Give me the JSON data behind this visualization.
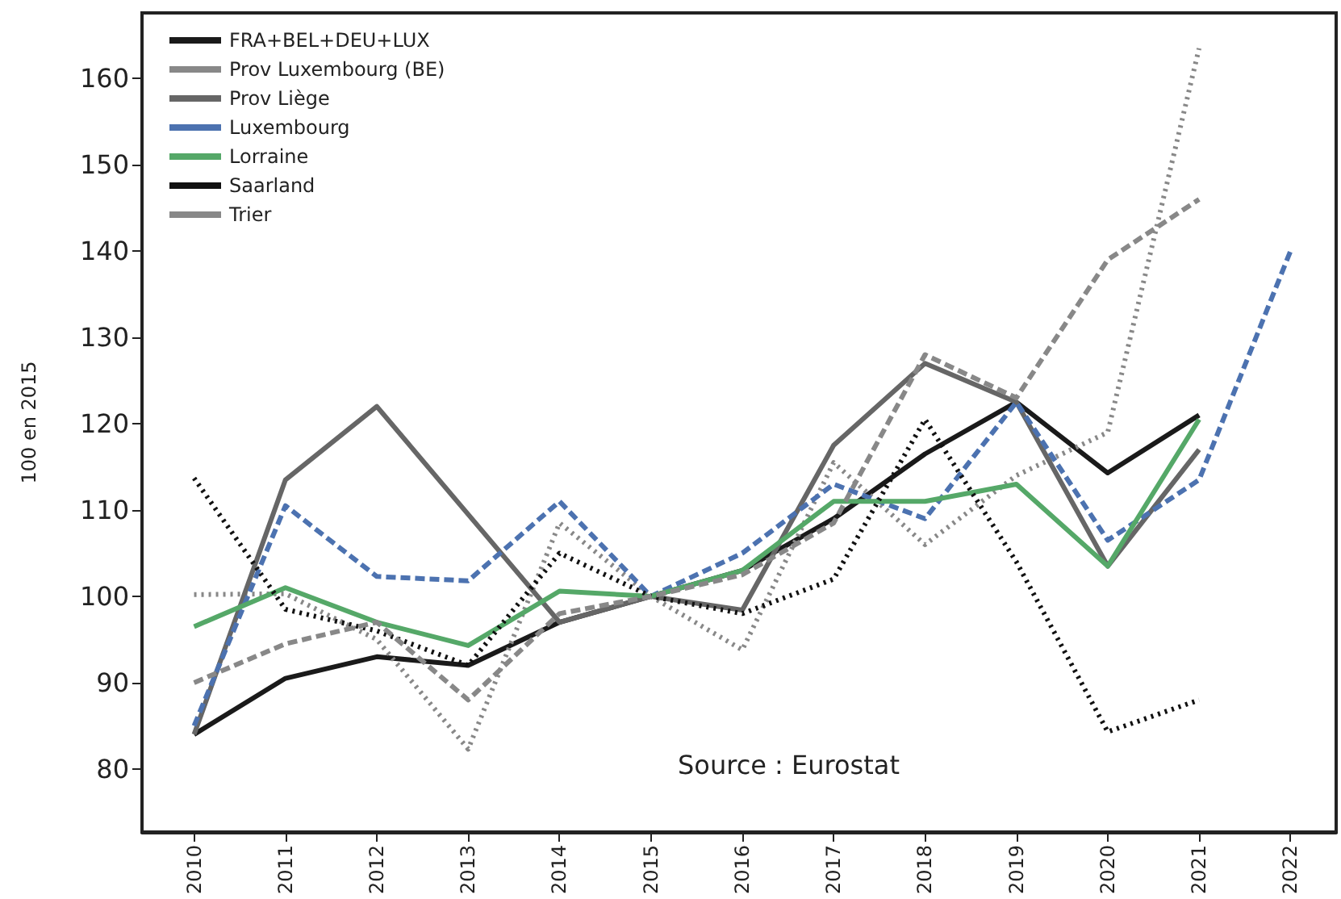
{
  "chart_data": {
    "type": "line",
    "ylabel": "100 en 2015",
    "x": [
      2010,
      2011,
      2012,
      2013,
      2014,
      2015,
      2016,
      2017,
      2018,
      2019,
      2020,
      2021,
      2022
    ],
    "xlim": [
      2009.43,
      2022.5
    ],
    "xticks": [
      2010,
      2011,
      2012,
      2013,
      2014,
      2015,
      2016,
      2017,
      2018,
      2019,
      2020,
      2021,
      2022
    ],
    "ylim": [
      72.7,
      167.6
    ],
    "yticks": [
      80,
      90,
      100,
      110,
      120,
      130,
      140,
      150,
      160
    ],
    "grid": false,
    "legend": "top left",
    "marker": "none",
    "annotations": [
      "Source : Eurostat"
    ],
    "series": [
      {
        "name": "FRA+BEL+DEU+LUX",
        "color": "#1a1a1a",
        "line_style": "solid",
        "values": [
          84,
          90.5,
          93,
          92,
          97,
          100,
          103,
          109,
          116.5,
          122.5,
          114.3,
          121,
          null
        ]
      },
      {
        "name": "Prov Luxembourg (BE)",
        "color": "#888888",
        "line_style": "dotted",
        "values": [
          100.2,
          100.3,
          95,
          82.3,
          108.5,
          100,
          93.8,
          115.5,
          106,
          114,
          119,
          163.5,
          null
        ]
      },
      {
        "name": "Prov Liège",
        "color": "#666666",
        "line_style": "solid",
        "values": [
          84,
          113.5,
          122,
          109.5,
          97,
          100,
          98.4,
          117.5,
          127,
          122.5,
          103.5,
          117,
          null
        ]
      },
      {
        "name": "Luxembourg",
        "color": "#4c72b0",
        "line_style": "dashed",
        "values": [
          85,
          110.5,
          102.3,
          101.8,
          111,
          100,
          105,
          113,
          109,
          122.5,
          106.5,
          113.5,
          140
        ]
      },
      {
        "name": "Lorraine",
        "color": "#55a868",
        "line_style": "solid",
        "values": [
          96.5,
          101,
          97,
          94.3,
          100.6,
          100,
          103,
          111,
          111,
          113,
          103.5,
          120.5,
          null
        ]
      },
      {
        "name": "Saarland",
        "color": "#111111",
        "line_style": "dotted",
        "values": [
          113.7,
          98.5,
          96,
          92,
          105,
          100,
          98,
          102,
          120.5,
          104,
          84.3,
          88,
          null
        ]
      },
      {
        "name": "Trier",
        "color": "#888888",
        "line_style": "dashed",
        "values": [
          90,
          94.5,
          97,
          88,
          98,
          100,
          102.5,
          108.5,
          128,
          123,
          139,
          146,
          null
        ]
      }
    ]
  }
}
